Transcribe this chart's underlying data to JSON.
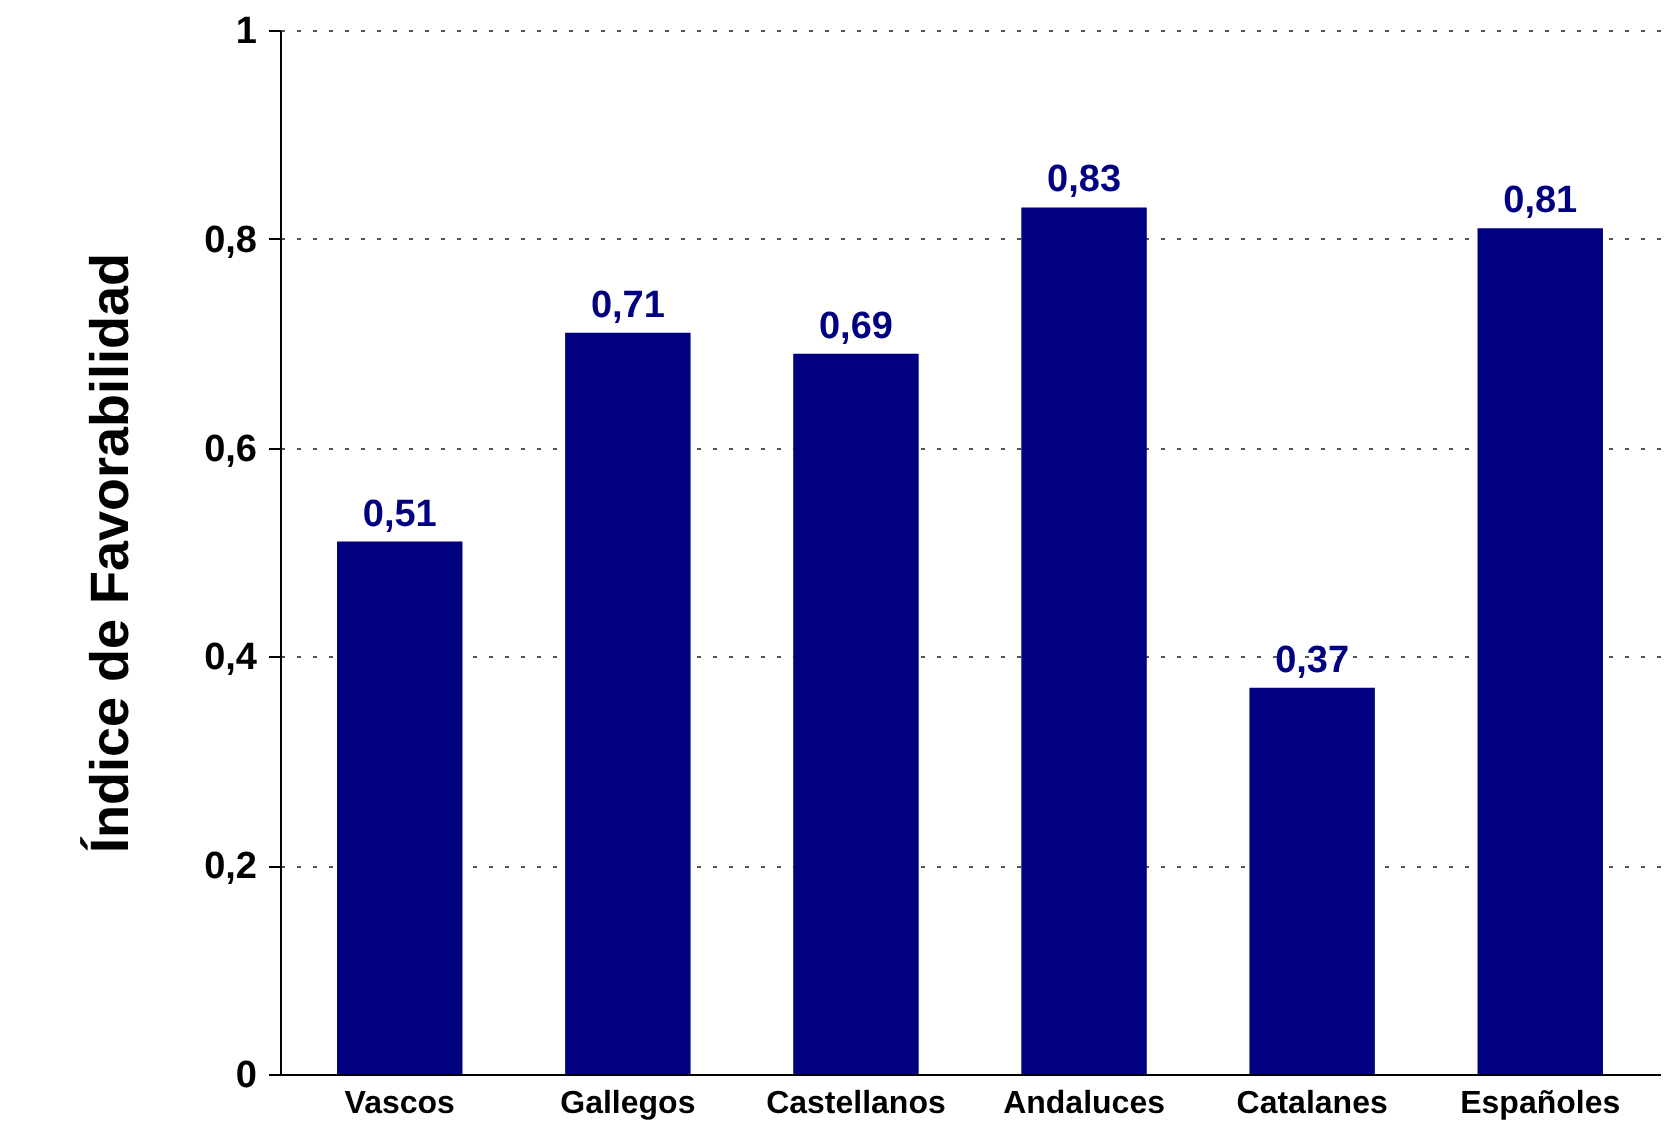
{
  "chart_data": {
    "type": "bar",
    "ylabel": "Índice de Favorabilidad",
    "categories": [
      "Vascos",
      "Gallegos",
      "Castellanos",
      "Andaluces",
      "Catalanes",
      "Españoles"
    ],
    "values": [
      0.51,
      0.71,
      0.69,
      0.83,
      0.37,
      0.81
    ],
    "value_labels": [
      "0,51",
      "0,71",
      "0,69",
      "0,83",
      "0,37",
      "0,81"
    ],
    "color": "#000080",
    "ylim": [
      0,
      1
    ],
    "yticks": [
      {
        "value": 0,
        "label": "0"
      },
      {
        "value": 0.2,
        "label": "0,2"
      },
      {
        "value": 0.4,
        "label": "0,4"
      },
      {
        "value": 0.6,
        "label": "0,6"
      },
      {
        "value": 0.8,
        "label": "0,8"
      },
      {
        "value": 1,
        "label": "1"
      }
    ],
    "grid": "y"
  }
}
